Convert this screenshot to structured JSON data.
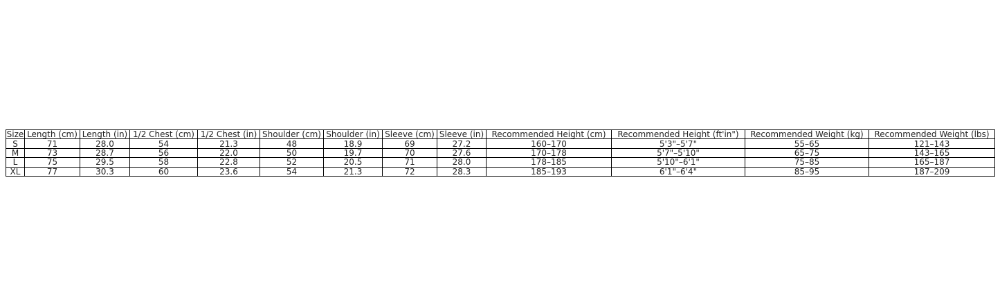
{
  "chart_data": {
    "type": "table",
    "columns": [
      "Size",
      "Length (cm)",
      "Length (in)",
      "1/2 Chest (cm)",
      "1/2 Chest (in)",
      "Shoulder (cm)",
      "Shoulder (in)",
      "Sleeve (cm)",
      "Sleeve (in)",
      "Recommended Height (cm)",
      "Recommended Height (ft'in\")",
      "Recommended Weight (kg)",
      "Recommended Weight (lbs)"
    ],
    "rows": [
      [
        "S",
        "71",
        "28.0",
        "54",
        "21.3",
        "48",
        "18.9",
        "69",
        "27.2",
        "160–170",
        "5'3\"–5'7\"",
        "55–65",
        "121–143"
      ],
      [
        "M",
        "73",
        "28.7",
        "56",
        "22.0",
        "50",
        "19.7",
        "70",
        "27.6",
        "170–178",
        "5'7\"–5'10\"",
        "65–75",
        "143–165"
      ],
      [
        "L",
        "75",
        "29.5",
        "58",
        "22.8",
        "52",
        "20.5",
        "71",
        "28.0",
        "178–185",
        "5'10\"–6'1\"",
        "75–85",
        "165–187"
      ],
      [
        "XL",
        "77",
        "30.3",
        "60",
        "23.6",
        "54",
        "21.3",
        "72",
        "28.3",
        "185–193",
        "6'1\"–6'4\"",
        "85–95",
        "187–209"
      ]
    ]
  }
}
